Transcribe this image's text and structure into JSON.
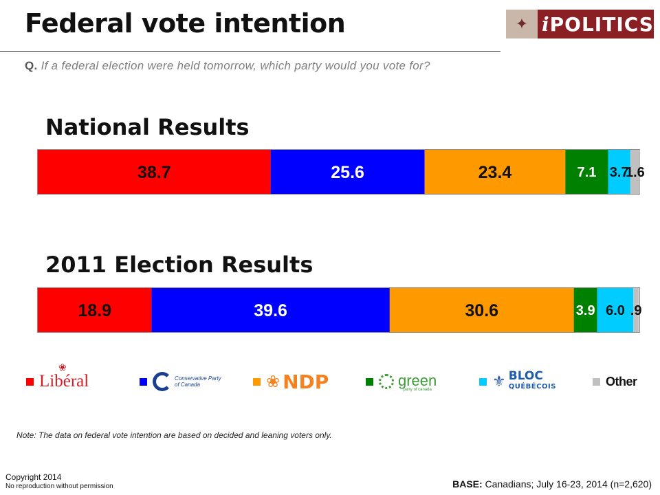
{
  "header": {
    "title": "Federal vote intention",
    "question_prefix": "Q.",
    "question_text": "If a federal election were held tomorrow, which party would you vote for?"
  },
  "logo": {
    "brand_i": "i",
    "brand_rest": "POLITICS"
  },
  "chart_data": {
    "type": "bar",
    "orientation": "horizontal-stacked-100",
    "categories": [
      "Liberal",
      "Conservative",
      "NDP",
      "Green",
      "Bloc Québécois",
      "Other"
    ],
    "colors": [
      "#ff0000",
      "#0000ff",
      "#ff9900",
      "#008000",
      "#00ccff",
      "#c0c0c0"
    ],
    "series": [
      {
        "name": "National Results",
        "values": [
          38.7,
          25.6,
          23.4,
          7.1,
          3.7,
          1.6
        ],
        "labels": [
          "38.7",
          "25.6",
          "23.4",
          "7.1",
          "3.7",
          "1.6"
        ]
      },
      {
        "name": "2011 Election Results",
        "values": [
          18.9,
          39.6,
          30.6,
          3.9,
          6.0,
          0.9
        ],
        "labels": [
          "18.9",
          "39.6",
          "30.6",
          "3.9",
          "6.0",
          ".9"
        ]
      }
    ],
    "xlim": [
      0,
      100
    ],
    "grid": false,
    "legend": "bottom"
  },
  "legend": {
    "liberal": "Libéral",
    "conservative_l1": "Conservative Party",
    "conservative_l2": "of Canada",
    "ndp": "NDP",
    "green": "green",
    "green_sub": "party of canada",
    "bloc_l1": "BLOC",
    "bloc_l2": "QUÉBÉCOIS",
    "other": "Other"
  },
  "footer": {
    "note": "Note: The data on federal vote intention are based on decided and leaning voters only.",
    "copyright": "Copyright 2014",
    "reproduction": "No reproduction without permission",
    "base_label": "BASE:",
    "base_text": "Canadians; July 16-23, 2014 (n=2,620)"
  }
}
